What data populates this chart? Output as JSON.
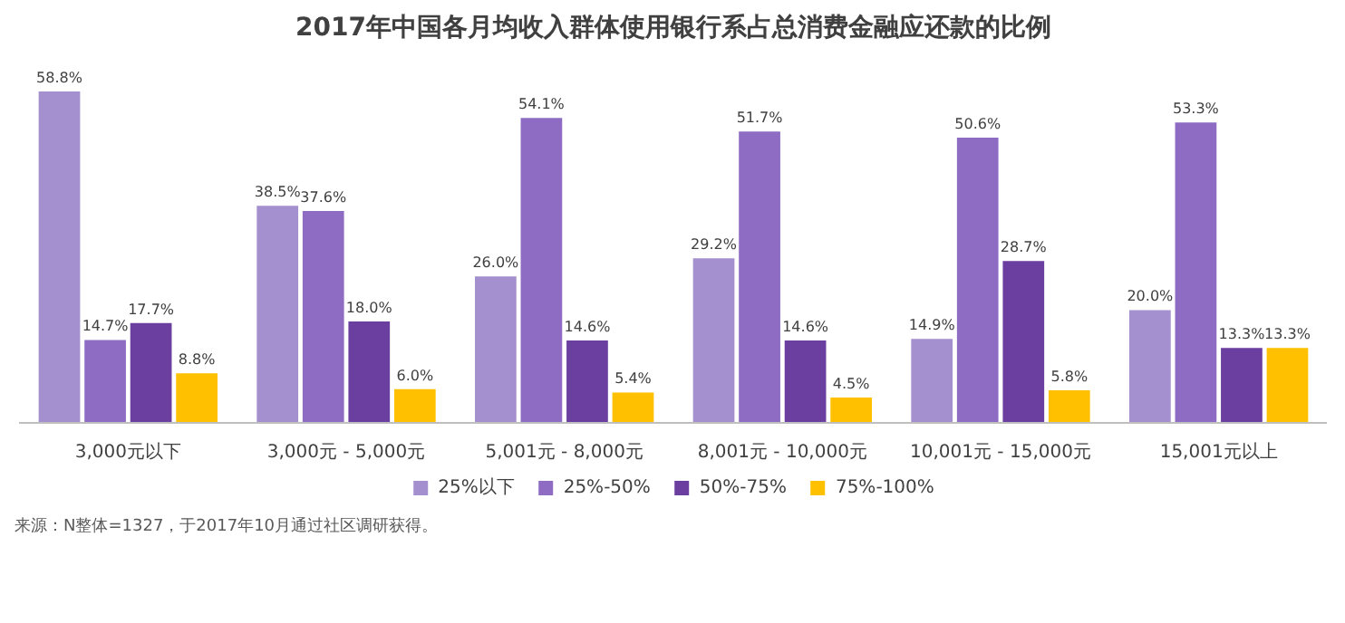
{
  "chart_data": {
    "type": "bar",
    "title": "2017年中国各月均收入群体使用银行系占总消费金融应还款的比例",
    "categories": [
      "3,000元以下",
      "3,000元 - 5,000元",
      "5,001元 - 8,000元",
      "8,001元 - 10,000元",
      "10,001元 - 15,000元",
      "15,001元以上"
    ],
    "series": [
      {
        "name": "25%以下",
        "color": "#a48fcf",
        "values": [
          58.8,
          38.5,
          26.0,
          29.2,
          14.9,
          20.0
        ],
        "value_labels": [
          "58.8%",
          "38.5%",
          "26.0%",
          "29.2%",
          "14.9%",
          "20.0%"
        ]
      },
      {
        "name": "25%-50%",
        "color": "#8e6cc3",
        "values": [
          14.7,
          37.6,
          54.1,
          51.7,
          50.6,
          53.3
        ],
        "value_labels": [
          "14.7%",
          "37.6%",
          "54.1%",
          "51.7%",
          "50.6%",
          "53.3%"
        ]
      },
      {
        "name": "50%-75%",
        "color": "#6b3fa0",
        "values": [
          17.7,
          18.0,
          14.6,
          14.6,
          28.7,
          13.3
        ],
        "value_labels": [
          "17.7%",
          "18.0%",
          "14.6%",
          "14.6%",
          "28.7%",
          "13.3%"
        ]
      },
      {
        "name": "75%-100%",
        "color": "#ffc000",
        "values": [
          8.8,
          6.0,
          5.4,
          4.5,
          5.8,
          13.3
        ],
        "value_labels": [
          "8.8%",
          "6.0%",
          "5.4%",
          "4.5%",
          "5.8%",
          "13.3%"
        ]
      }
    ],
    "legend": "bottom",
    "grid": false,
    "annotations": [
      "来源：N整体=1327，于2017年10月通过社区调研获得。"
    ]
  }
}
